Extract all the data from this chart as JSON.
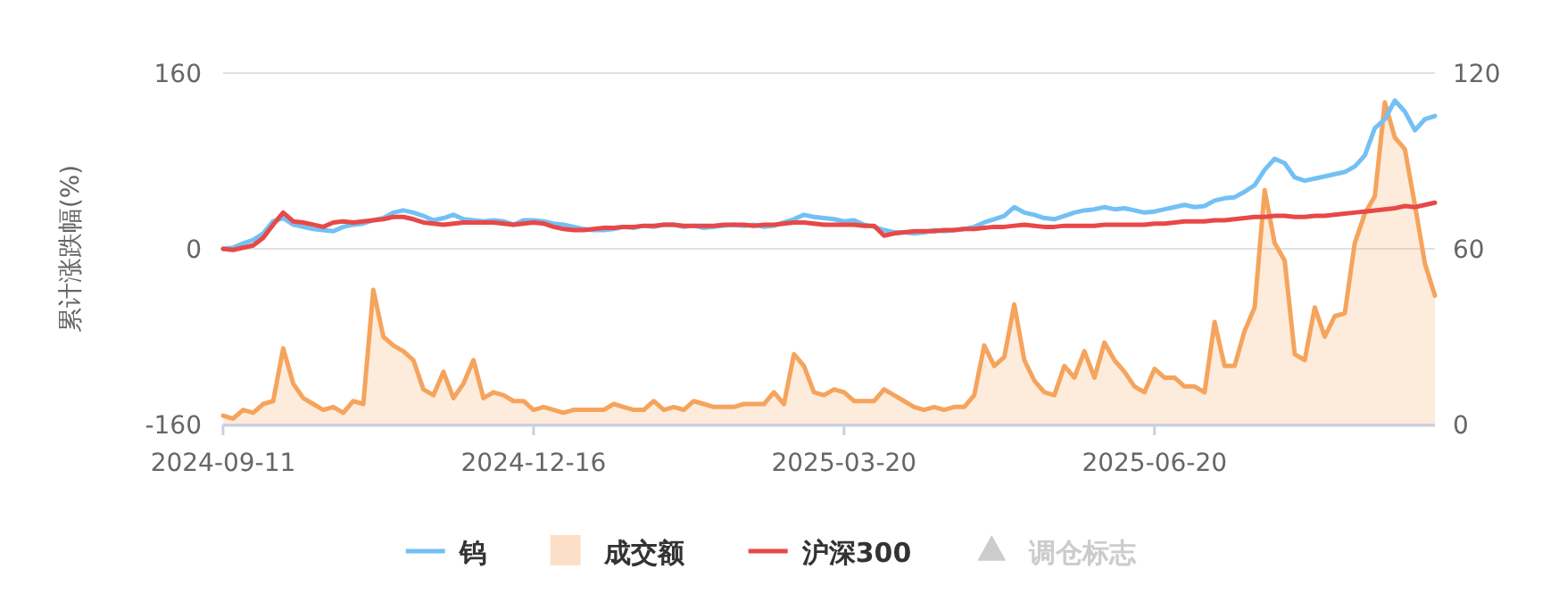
{
  "chart_data": {
    "type": "line",
    "ylabel": "累计涨跌幅(%)",
    "legend": "bottom",
    "grid": "y",
    "categories": [
      "2024-09-11",
      null,
      null,
      null,
      null,
      null,
      null,
      null,
      null,
      null,
      null,
      null,
      null,
      null,
      null,
      null,
      null,
      null,
      null,
      null,
      null,
      null,
      null,
      null,
      null,
      null,
      null,
      null,
      null,
      null,
      null,
      "2024-12-16",
      null,
      null,
      null,
      null,
      null,
      null,
      null,
      null,
      null,
      null,
      null,
      null,
      null,
      null,
      null,
      null,
      null,
      null,
      null,
      null,
      null,
      null,
      null,
      null,
      null,
      null,
      null,
      null,
      null,
      null,
      "2025-03-20",
      null,
      null,
      null,
      null,
      null,
      null,
      null,
      null,
      null,
      null,
      null,
      null,
      null,
      null,
      null,
      null,
      null,
      null,
      null,
      null,
      null,
      null,
      null,
      null,
      null,
      null,
      null,
      null,
      null,
      null,
      "2025-06-20",
      null,
      null,
      null,
      null,
      null,
      null,
      null,
      null,
      null,
      null,
      null,
      null,
      null,
      null,
      null,
      null,
      null,
      null,
      null,
      null,
      null,
      null,
      null,
      null,
      null,
      null,
      null,
      null
    ],
    "ylim": [
      -160,
      160
    ],
    "yticks": [
      -160,
      0,
      160
    ],
    "y2lim": [
      0,
      120
    ],
    "y2ticks": [
      0,
      60,
      120
    ],
    "series": [
      {
        "name": "钨",
        "color": "#73c0f4",
        "values": [
          0,
          1,
          5,
          8,
          14,
          25,
          28,
          22,
          20,
          18,
          17,
          16,
          20,
          22,
          23,
          26,
          28,
          33,
          35,
          33,
          30,
          26,
          28,
          31,
          27,
          26,
          25,
          26,
          25,
          22,
          26,
          26,
          25,
          23,
          22,
          20,
          18,
          17,
          17,
          18,
          20,
          19,
          21,
          20,
          22,
          22,
          20,
          21,
          19,
          20,
          21,
          22,
          21,
          22,
          20,
          21,
          24,
          27,
          31,
          29,
          28,
          27,
          25,
          26,
          22,
          20,
          17,
          15,
          15,
          14,
          15,
          17,
          16,
          17,
          18,
          20,
          24,
          27,
          30,
          38,
          33,
          31,
          28,
          27,
          30,
          33,
          35,
          36,
          38,
          36,
          37,
          35,
          33,
          34,
          36,
          38,
          40,
          38,
          39,
          44,
          46,
          47,
          52,
          58,
          72,
          82,
          78,
          65,
          62,
          64,
          66,
          68,
          70,
          75,
          85,
          110,
          118,
          135,
          125,
          108,
          118,
          121
        ]
      },
      {
        "name": "成交额",
        "type": "area",
        "axis": "y2",
        "color": "#f5a45d",
        "values": [
          3,
          2,
          5,
          4,
          7,
          8,
          26,
          14,
          9,
          7,
          5,
          6,
          4,
          8,
          7,
          46,
          30,
          27,
          25,
          22,
          12,
          10,
          18,
          9,
          14,
          22,
          9,
          11,
          10,
          8,
          8,
          5,
          6,
          5,
          4,
          5,
          5,
          5,
          5,
          7,
          6,
          5,
          5,
          8,
          5,
          6,
          5,
          8,
          7,
          6,
          6,
          6,
          7,
          7,
          7,
          11,
          7,
          24,
          20,
          11,
          10,
          12,
          11,
          8,
          8,
          8,
          12,
          10,
          8,
          6,
          5,
          6,
          5,
          6,
          6,
          10,
          27,
          20,
          23,
          41,
          22,
          15,
          11,
          10,
          20,
          16,
          25,
          16,
          28,
          22,
          18,
          13,
          11,
          19,
          16,
          16,
          13,
          13,
          11,
          35,
          20,
          20,
          32,
          40,
          80,
          62,
          56,
          24,
          22,
          40,
          30,
          37,
          38,
          62,
          72,
          78,
          110,
          98,
          94,
          75,
          55,
          44
        ]
      },
      {
        "name": "沪深300",
        "color": "#e84848",
        "values": [
          0,
          -1,
          1,
          3,
          10,
          22,
          33,
          25,
          24,
          22,
          20,
          24,
          25,
          24,
          25,
          26,
          27,
          29,
          29,
          27,
          24,
          23,
          22,
          23,
          24,
          24,
          24,
          24,
          23,
          22,
          23,
          24,
          23,
          20,
          18,
          17,
          17,
          18,
          19,
          19,
          20,
          20,
          21,
          21,
          22,
          22,
          21,
          21,
          21,
          21,
          22,
          22,
          22,
          21,
          22,
          22,
          23,
          24,
          24,
          23,
          22,
          22,
          22,
          22,
          21,
          21,
          12,
          14,
          15,
          16,
          16,
          16,
          17,
          17,
          18,
          18,
          19,
          20,
          20,
          21,
          22,
          21,
          20,
          20,
          21,
          21,
          21,
          21,
          22,
          22,
          22,
          22,
          22,
          23,
          23,
          24,
          25,
          25,
          25,
          26,
          26,
          27,
          28,
          29,
          29,
          30,
          30,
          29,
          29,
          30,
          30,
          31,
          32,
          33,
          34,
          35,
          36,
          37,
          39,
          38,
          40,
          42
        ]
      },
      {
        "name": "调仓标志",
        "type": "scatter",
        "marker": "triangle",
        "color": "#cccccc",
        "values": [
          null,
          null,
          null,
          null,
          null,
          null,
          null,
          null,
          null,
          null,
          null,
          null,
          null,
          null,
          null,
          null,
          null,
          null,
          null,
          null,
          null,
          null,
          null,
          null,
          null,
          null,
          null,
          null,
          null,
          null,
          null,
          null,
          null,
          null,
          null,
          null,
          null,
          null,
          null,
          null,
          null,
          null,
          null,
          null,
          null,
          null,
          null,
          null,
          null,
          null,
          null,
          null,
          null,
          null,
          null,
          null,
          null,
          null,
          null,
          null,
          null,
          null,
          null,
          null,
          null,
          null,
          null,
          null,
          null,
          null,
          null,
          null,
          null,
          null,
          null,
          null,
          null,
          null,
          null,
          null,
          null,
          null,
          null,
          null,
          null,
          null,
          null,
          null,
          null,
          null,
          null,
          null,
          null,
          null,
          null,
          null,
          null,
          null,
          null,
          null,
          null,
          null,
          null,
          null,
          null,
          null,
          null,
          null,
          null,
          null,
          null,
          null,
          null,
          null,
          null,
          null,
          null,
          null,
          null,
          null,
          null,
          null
        ]
      }
    ]
  }
}
